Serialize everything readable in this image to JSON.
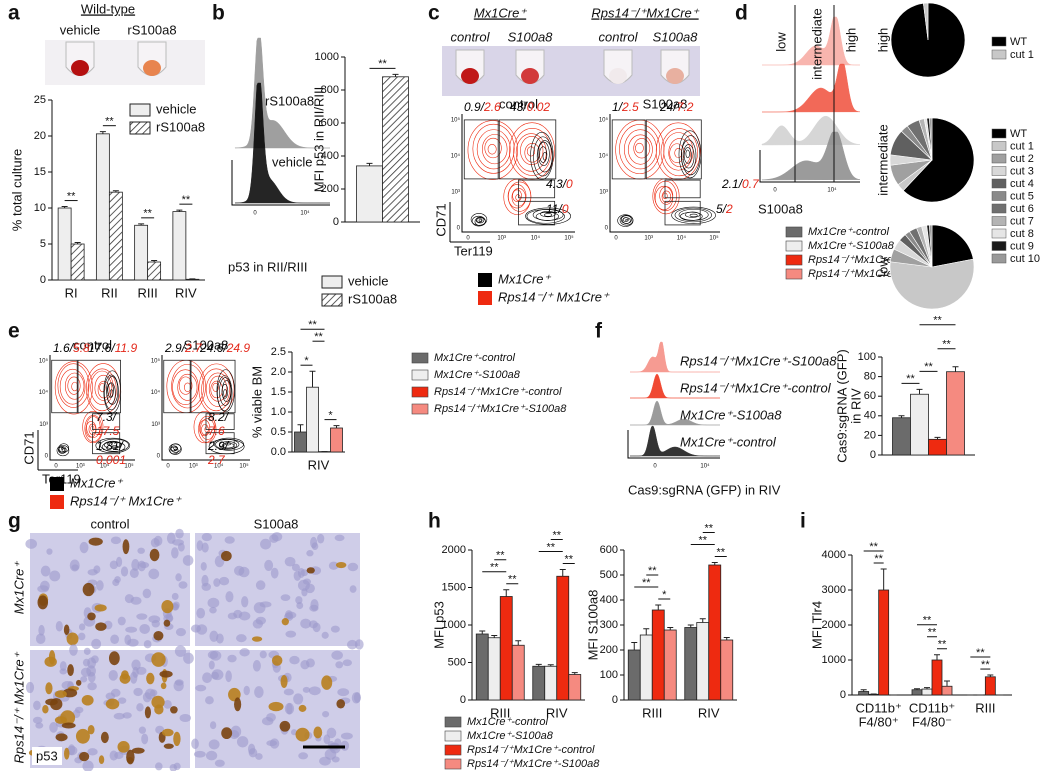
{
  "figure": {
    "groups": [
      {
        "name": "Mx1Cre⁺-control",
        "color": "#6b6b6b"
      },
      {
        "name": "Mx1Cre⁺-S100a8",
        "color": "#eeeeee"
      },
      {
        "name": "Rps14⁻/⁺Mx1Cre⁺-control",
        "color": "#ee2a10"
      },
      {
        "name": "Rps14⁻/⁺Mx1Cre⁺-S100a8",
        "color": "#f58a80"
      }
    ],
    "genotypes": [
      {
        "name": "Mx1Cre⁺",
        "color": "#000000"
      },
      {
        "name": "Rps14⁻/⁺ Mx1Cre⁺",
        "color": "#ee2a10"
      }
    ],
    "flow_axes": {
      "y": "CD71",
      "x": "Ter119",
      "ticks": [
        "0",
        "10³",
        "10⁴",
        "10⁵"
      ]
    },
    "hist_ticks": [
      "0",
      "10⁴"
    ],
    "a": {
      "label": "a",
      "title": "Wild-type",
      "tubes": [
        "vehicle",
        "rS100a8"
      ],
      "chart": {
        "type": "bar",
        "ylabel": "% total culture",
        "categories": [
          "RI",
          "RII",
          "RIII",
          "RIV"
        ],
        "series": [
          {
            "name": "vehicle",
            "color": "#eeeeee",
            "values": [
              10,
              20.3,
              7.6,
              9.5
            ],
            "errors": [
              0.2,
              0.3,
              0.2,
              0.2
            ]
          },
          {
            "name": "rS100a8",
            "color": "#ffffff",
            "pattern": "hatch",
            "values": [
              5,
              12.2,
              2.5,
              0.1
            ],
            "errors": [
              0.2,
              0.2,
              0.2,
              0.05
            ]
          }
        ],
        "ylim": [
          0,
          25
        ],
        "yticks": [
          0,
          5,
          10,
          15,
          20,
          25
        ],
        "significance": [
          {
            "label": "**",
            "category": 0,
            "series": [
              0,
              1
            ]
          },
          {
            "label": "**",
            "category": 1,
            "series": [
              0,
              1
            ]
          },
          {
            "label": "**",
            "category": 2,
            "series": [
              0,
              1
            ]
          },
          {
            "label": "**",
            "category": 3,
            "series": [
              0,
              1
            ]
          }
        ]
      }
    },
    "b": {
      "label": "b",
      "hist_labels": [
        "rS100a8",
        "vehicle"
      ],
      "xlabel": "p53 in RII/RIII",
      "chart": {
        "type": "bar",
        "ylabel": "MFI p53 in RII/RIII",
        "series": [
          {
            "name": "vehicle",
            "color": "#eeeeee",
            "values": [
              340
            ],
            "errors": [
              15
            ]
          },
          {
            "name": "rS100a8",
            "color": "#ffffff",
            "pattern": "hatch",
            "values": [
              880
            ],
            "errors": [
              15
            ]
          }
        ],
        "ylim": [
          0,
          1000
        ],
        "yticks": [
          0,
          200,
          400,
          600,
          800,
          1000
        ],
        "significance": [
          {
            "label": "**",
            "category": 0,
            "series": [
              0,
              1
            ]
          }
        ]
      }
    },
    "c": {
      "label": "c",
      "headers": [
        "Mx1Cre⁺",
        "Rps14⁻/⁺Mx1Cre⁺"
      ],
      "tubes": [
        "control",
        "S100a8",
        "control",
        "S100a8"
      ],
      "plots": [
        {
          "title": "control",
          "gates": [
            {
              "black": "0.9",
              "red": "2.6"
            },
            {
              "black": "43",
              "red": "0.02"
            },
            {
              "black": "4.3",
              "red": "0"
            },
            {
              "black": "11",
              "red": "0"
            }
          ]
        },
        {
          "title": "S100a8",
          "gates": [
            {
              "black": "1",
              "red": "2.5"
            },
            {
              "black": "24",
              "red": "7.2"
            },
            {
              "black": "2.1",
              "red": "0.7"
            },
            {
              "black": "5",
              "red": "2"
            }
          ]
        }
      ]
    },
    "d": {
      "label": "d",
      "gates": [
        "low",
        "intermediate",
        "high"
      ],
      "xlabel": "S100a8",
      "pie_legend": [
        {
          "name": "WT",
          "color": "#000000"
        },
        {
          "name": "cut 1",
          "color": "#c8c8c8"
        },
        {
          "name": "cut 2",
          "color": "#a0a0a0"
        },
        {
          "name": "cut 3",
          "color": "#d8d8d8"
        },
        {
          "name": "cut 4",
          "color": "#606060"
        },
        {
          "name": "cut 5",
          "color": "#8a8a8a"
        },
        {
          "name": "cut 6",
          "color": "#707070"
        },
        {
          "name": "cut 7",
          "color": "#b4b4b4"
        },
        {
          "name": "cut 8",
          "color": "#e6e6e6"
        },
        {
          "name": "cut 9",
          "color": "#1a1a1a"
        },
        {
          "name": "cut 10",
          "color": "#999999"
        }
      ],
      "pies": [
        {
          "label": "high",
          "values": [
            98,
            2
          ]
        },
        {
          "label": "intermediate",
          "values": [
            62,
            3,
            8,
            4,
            10,
            3,
            5,
            2,
            1,
            1,
            1
          ]
        },
        {
          "label": "low",
          "values": [
            22,
            55,
            5,
            4,
            3,
            2,
            3,
            2,
            2,
            1,
            1
          ]
        }
      ]
    },
    "e": {
      "label": "e",
      "plots": [
        {
          "title": "control",
          "gates": [
            {
              "black": "1.6",
              "red": "5.8"
            },
            {
              "black": "17.6",
              "red": "11.9"
            },
            {
              "black": "7.3",
              "red": "17.5"
            },
            {
              "black": "1.81",
              "red": "0.001"
            }
          ]
        },
        {
          "title": "S100a8",
          "gates": [
            {
              "black": "2.9",
              "red": "2.7"
            },
            {
              "black": "24.6",
              "red": "24.9"
            },
            {
              "black": "8.2",
              "red": "7.6"
            },
            {
              "black": "2.9",
              "red": "2.7"
            }
          ]
        }
      ],
      "chart": {
        "type": "bar",
        "ylabel": "% viable BM",
        "categories": [
          [
            "RIV"
          ]
        ],
        "series": [
          {
            "values": [
              0.5
            ],
            "errors": [
              0.18
            ]
          },
          {
            "values": [
              1.62
            ],
            "errors": [
              0.4
            ]
          },
          {
            "values": [
              0.01
            ],
            "errors": [
              0
            ]
          },
          {
            "values": [
              0.6
            ],
            "errors": [
              0.06
            ]
          }
        ],
        "ylim": [
          0,
          2.5
        ],
        "yticks": [
          {
            "value": 0,
            "label": "0.0"
          },
          0.5,
          {
            "value": 1,
            "label": "1.0"
          },
          1.5,
          {
            "value": 2,
            "label": "2.0"
          },
          2.5
        ],
        "significance": [
          {
            "label": "*",
            "category": 0,
            "series": [
              2,
              3
            ]
          },
          {
            "label": "*",
            "category": 0,
            "series": [
              0,
              1
            ]
          },
          {
            "label": "**",
            "category": 0,
            "series": [
              1,
              2
            ]
          },
          {
            "label": "**",
            "category": 0,
            "series": [
              0,
              2
            ]
          }
        ]
      }
    },
    "f": {
      "label": "f",
      "xlabel": "Cas9:sgRNA (GFP) in RIV",
      "chart": {
        "type": "bar",
        "ylabel": [
          "Cas9:sgRNA (GFP)",
          "in RIV"
        ],
        "series": [
          {
            "values": [
              38
            ],
            "errors": [
              2
            ]
          },
          {
            "values": [
              62
            ],
            "errors": [
              5
            ]
          },
          {
            "values": [
              16
            ],
            "errors": [
              2
            ]
          },
          {
            "values": [
              85
            ],
            "errors": [
              5
            ]
          }
        ],
        "ylim": [
          0,
          100
        ],
        "yticks": [
          0,
          20,
          40,
          60,
          80,
          100
        ],
        "significance": [
          {
            "label": "**",
            "category": 0,
            "series": [
              0,
              1
            ]
          },
          {
            "label": "**",
            "category": 0,
            "series": [
              1,
              2
            ]
          },
          {
            "label": "**",
            "category": 0,
            "series": [
              2,
              3
            ]
          },
          {
            "label": "**",
            "category": 0,
            "series": [
              1,
              3
            ]
          }
        ]
      }
    },
    "g": {
      "label": "g",
      "columns": [
        "control",
        "S100a8"
      ],
      "rows": [
        "Mx1Cre⁺",
        "Rps14⁻/⁺ Mx1Cre⁺"
      ],
      "stain": "p53"
    },
    "h": {
      "label": "h",
      "charts": [
        {
          "type": "bar",
          "ylabel": "MFI p53",
          "categories": [
            [
              "RIII"
            ],
            [
              "RIV"
            ]
          ],
          "series": [
            {
              "values": [
                880,
                450
              ],
              "errors": [
                40,
                25
              ]
            },
            {
              "values": [
                830,
                450
              ],
              "errors": [
                30,
                20
              ]
            },
            {
              "values": [
                1380,
                1650
              ],
              "errors": [
                90,
                90
              ]
            },
            {
              "values": [
                730,
                340
              ],
              "errors": [
                60,
                25
              ]
            }
          ],
          "ylim": [
            0,
            2000
          ],
          "yticks": [
            0,
            500,
            1000,
            1500,
            2000
          ],
          "significance": [
            {
              "label": "**",
              "category": 0,
              "series": [
                2,
                3
              ]
            },
            {
              "label": "**",
              "category": 0,
              "series": [
                0,
                2
              ]
            },
            {
              "label": "**",
              "category": 0,
              "series": [
                1,
                2
              ]
            },
            {
              "label": "**",
              "category": 1,
              "series": [
                2,
                3
              ]
            },
            {
              "label": "**",
              "category": 1,
              "series": [
                0,
                2
              ]
            },
            {
              "label": "**",
              "category": 1,
              "series": [
                1,
                2
              ]
            }
          ]
        },
        {
          "type": "bar",
          "ylabel": "MFI S100a8",
          "categories": [
            [
              "RIII"
            ],
            [
              "RIV"
            ]
          ],
          "series": [
            {
              "values": [
                200,
                290
              ],
              "errors": [
                30,
                10
              ]
            },
            {
              "values": [
                260,
                310
              ],
              "errors": [
                25,
                15
              ]
            },
            {
              "values": [
                360,
                540
              ],
              "errors": [
                20,
                10
              ]
            },
            {
              "values": [
                280,
                240
              ],
              "errors": [
                10,
                10
              ]
            }
          ],
          "ylim": [
            0,
            600
          ],
          "yticks": [
            0,
            100,
            200,
            300,
            400,
            500,
            600
          ],
          "significance": [
            {
              "label": "*",
              "category": 0,
              "series": [
                2,
                3
              ]
            },
            {
              "label": "**",
              "category": 0,
              "series": [
                0,
                2
              ]
            },
            {
              "label": "**",
              "category": 0,
              "series": [
                1,
                2
              ]
            },
            {
              "label": "**",
              "category": 1,
              "series": [
                2,
                3
              ]
            },
            {
              "label": "**",
              "category": 1,
              "series": [
                0,
                2
              ]
            },
            {
              "label": "**",
              "category": 1,
              "series": [
                1,
                2
              ]
            }
          ]
        }
      ]
    },
    "i": {
      "label": "i",
      "chart": {
        "type": "bar",
        "ylabel": "MFI Tlr4",
        "categories": [
          [
            "CD11b⁺",
            "F4/80⁺"
          ],
          [
            "CD11b⁺",
            "F4/80⁻"
          ],
          [
            "RIII"
          ]
        ],
        "series": [
          {
            "values": [
              100,
              150,
              0
            ],
            "errors": [
              50,
              30,
              0
            ]
          },
          {
            "values": [
              20,
              170,
              0
            ],
            "errors": [
              10,
              40,
              0
            ]
          },
          {
            "values": [
              3000,
              1000,
              520
            ],
            "errors": [
              600,
              150,
              50
            ]
          },
          {
            "values": [
              0,
              250,
              0
            ],
            "errors": [
              0,
              150,
              0
            ]
          }
        ],
        "ylim": [
          0,
          4000
        ],
        "yticks": [
          0,
          1000,
          2000,
          3000,
          4000
        ],
        "significance": [
          {
            "label": "**",
            "category": 0,
            "series": [
              1,
              2
            ]
          },
          {
            "label": "**",
            "category": 0,
            "series": [
              0,
              2
            ]
          },
          {
            "label": "**",
            "category": 1,
            "series": [
              2,
              3
            ]
          },
          {
            "label": "**",
            "category": 1,
            "series": [
              1,
              2
            ]
          },
          {
            "label": "**",
            "category": 1,
            "series": [
              0,
              2
            ]
          },
          {
            "label": "**",
            "category": 2,
            "series": [
              1,
              2
            ]
          },
          {
            "label": "**",
            "category": 2,
            "series": [
              0,
              2
            ]
          }
        ]
      }
    }
  }
}
